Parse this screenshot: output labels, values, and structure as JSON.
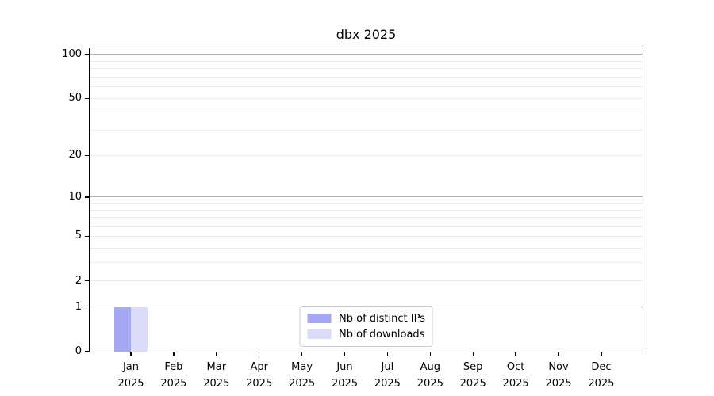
{
  "chart_data": {
    "type": "bar",
    "title": "dbx 2025",
    "x": {
      "months": [
        "Jan",
        "Feb",
        "Mar",
        "Apr",
        "May",
        "Jun",
        "Jul",
        "Aug",
        "Sep",
        "Oct",
        "Nov",
        "Dec"
      ],
      "year": "2025"
    },
    "y_axis": {
      "scale": "log1p",
      "ticks": [
        0,
        1,
        2,
        5,
        10,
        20,
        50,
        100
      ],
      "ylim": [
        0,
        110
      ],
      "major_gridlines": [
        1,
        10,
        100
      ],
      "minor_gridlines": [
        2,
        3,
        4,
        5,
        6,
        7,
        8,
        9,
        20,
        30,
        40,
        50,
        60,
        70,
        80,
        90
      ],
      "grid": true
    },
    "series": [
      {
        "name": "Nb of distinct IPs",
        "color": "#a6a7f5",
        "values": [
          1,
          0,
          0,
          0,
          0,
          0,
          0,
          0,
          0,
          0,
          0,
          0
        ]
      },
      {
        "name": "Nb of downloads",
        "color": "#dbdcfa",
        "values": [
          1,
          0,
          0,
          0,
          0,
          0,
          0,
          0,
          0,
          0,
          0,
          0
        ]
      }
    ],
    "legend": {
      "position": "lower center"
    },
    "colors": {
      "major_grid": "#b2b2b2",
      "minor_grid": "#e9e9e9",
      "spine": "#000000"
    }
  }
}
